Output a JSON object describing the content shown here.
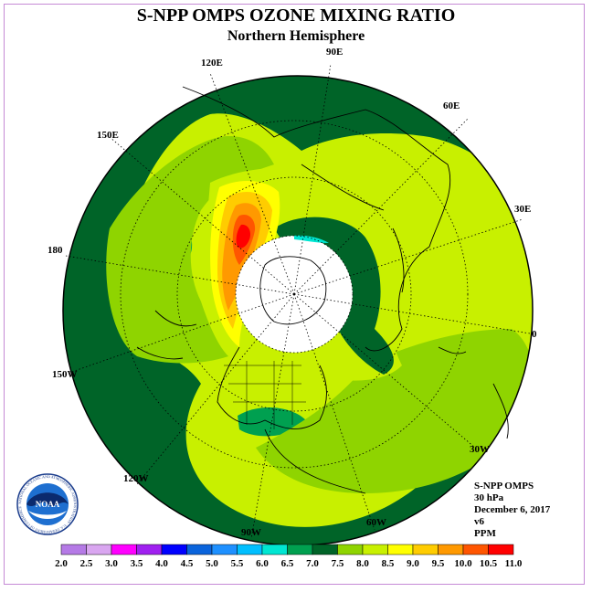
{
  "header": {
    "title": "S-NPP OMPS OZONE MIXING RATIO",
    "subtitle": "Northern Hemisphere"
  },
  "map": {
    "projection": "polar stereographic",
    "hemisphere": "north",
    "longitude_labels": {
      "lon_90e": "90E",
      "lon_60e": "60E",
      "lon_30e": "30E",
      "lon_0": "0",
      "lon_30w": "30W",
      "lon_60w": "60W",
      "lon_90w": "90W",
      "lon_120w": "120W",
      "lon_150w": "150W",
      "lon_180": "180",
      "lon_150e": "150E",
      "lon_120e": "120E"
    }
  },
  "info": {
    "instrument": "S-NPP OMPS",
    "level": "30 hPa",
    "date": "December 6, 2017",
    "version": "v6",
    "units": "PPM"
  },
  "colorbar": {
    "labels": [
      "2.0",
      "2.5",
      "3.0",
      "3.5",
      "4.0",
      "4.5",
      "5.0",
      "5.5",
      "6.0",
      "6.5",
      "7.0",
      "7.5",
      "8.0",
      "8.5",
      "9.0",
      "9.5",
      "10.0",
      "10.5",
      "11.0"
    ],
    "colors": [
      "#b57ae6",
      "#d9a6f0",
      "#ff00ff",
      "#a020f0",
      "#0000ff",
      "#0a64dc",
      "#1e90ff",
      "#00bfff",
      "#00e6d2",
      "#00a050",
      "#006428",
      "#8fd400",
      "#c8f000",
      "#ffff00",
      "#ffcc00",
      "#ff9900",
      "#ff5500",
      "#ff0000",
      "#8b4513"
    ]
  },
  "logo": {
    "text": "NOAA",
    "ring_text": "NATIONAL OCEANIC AND ATMOSPHERIC ADMINISTRATION · U.S. DEPARTMENT OF COMMERCE"
  }
}
